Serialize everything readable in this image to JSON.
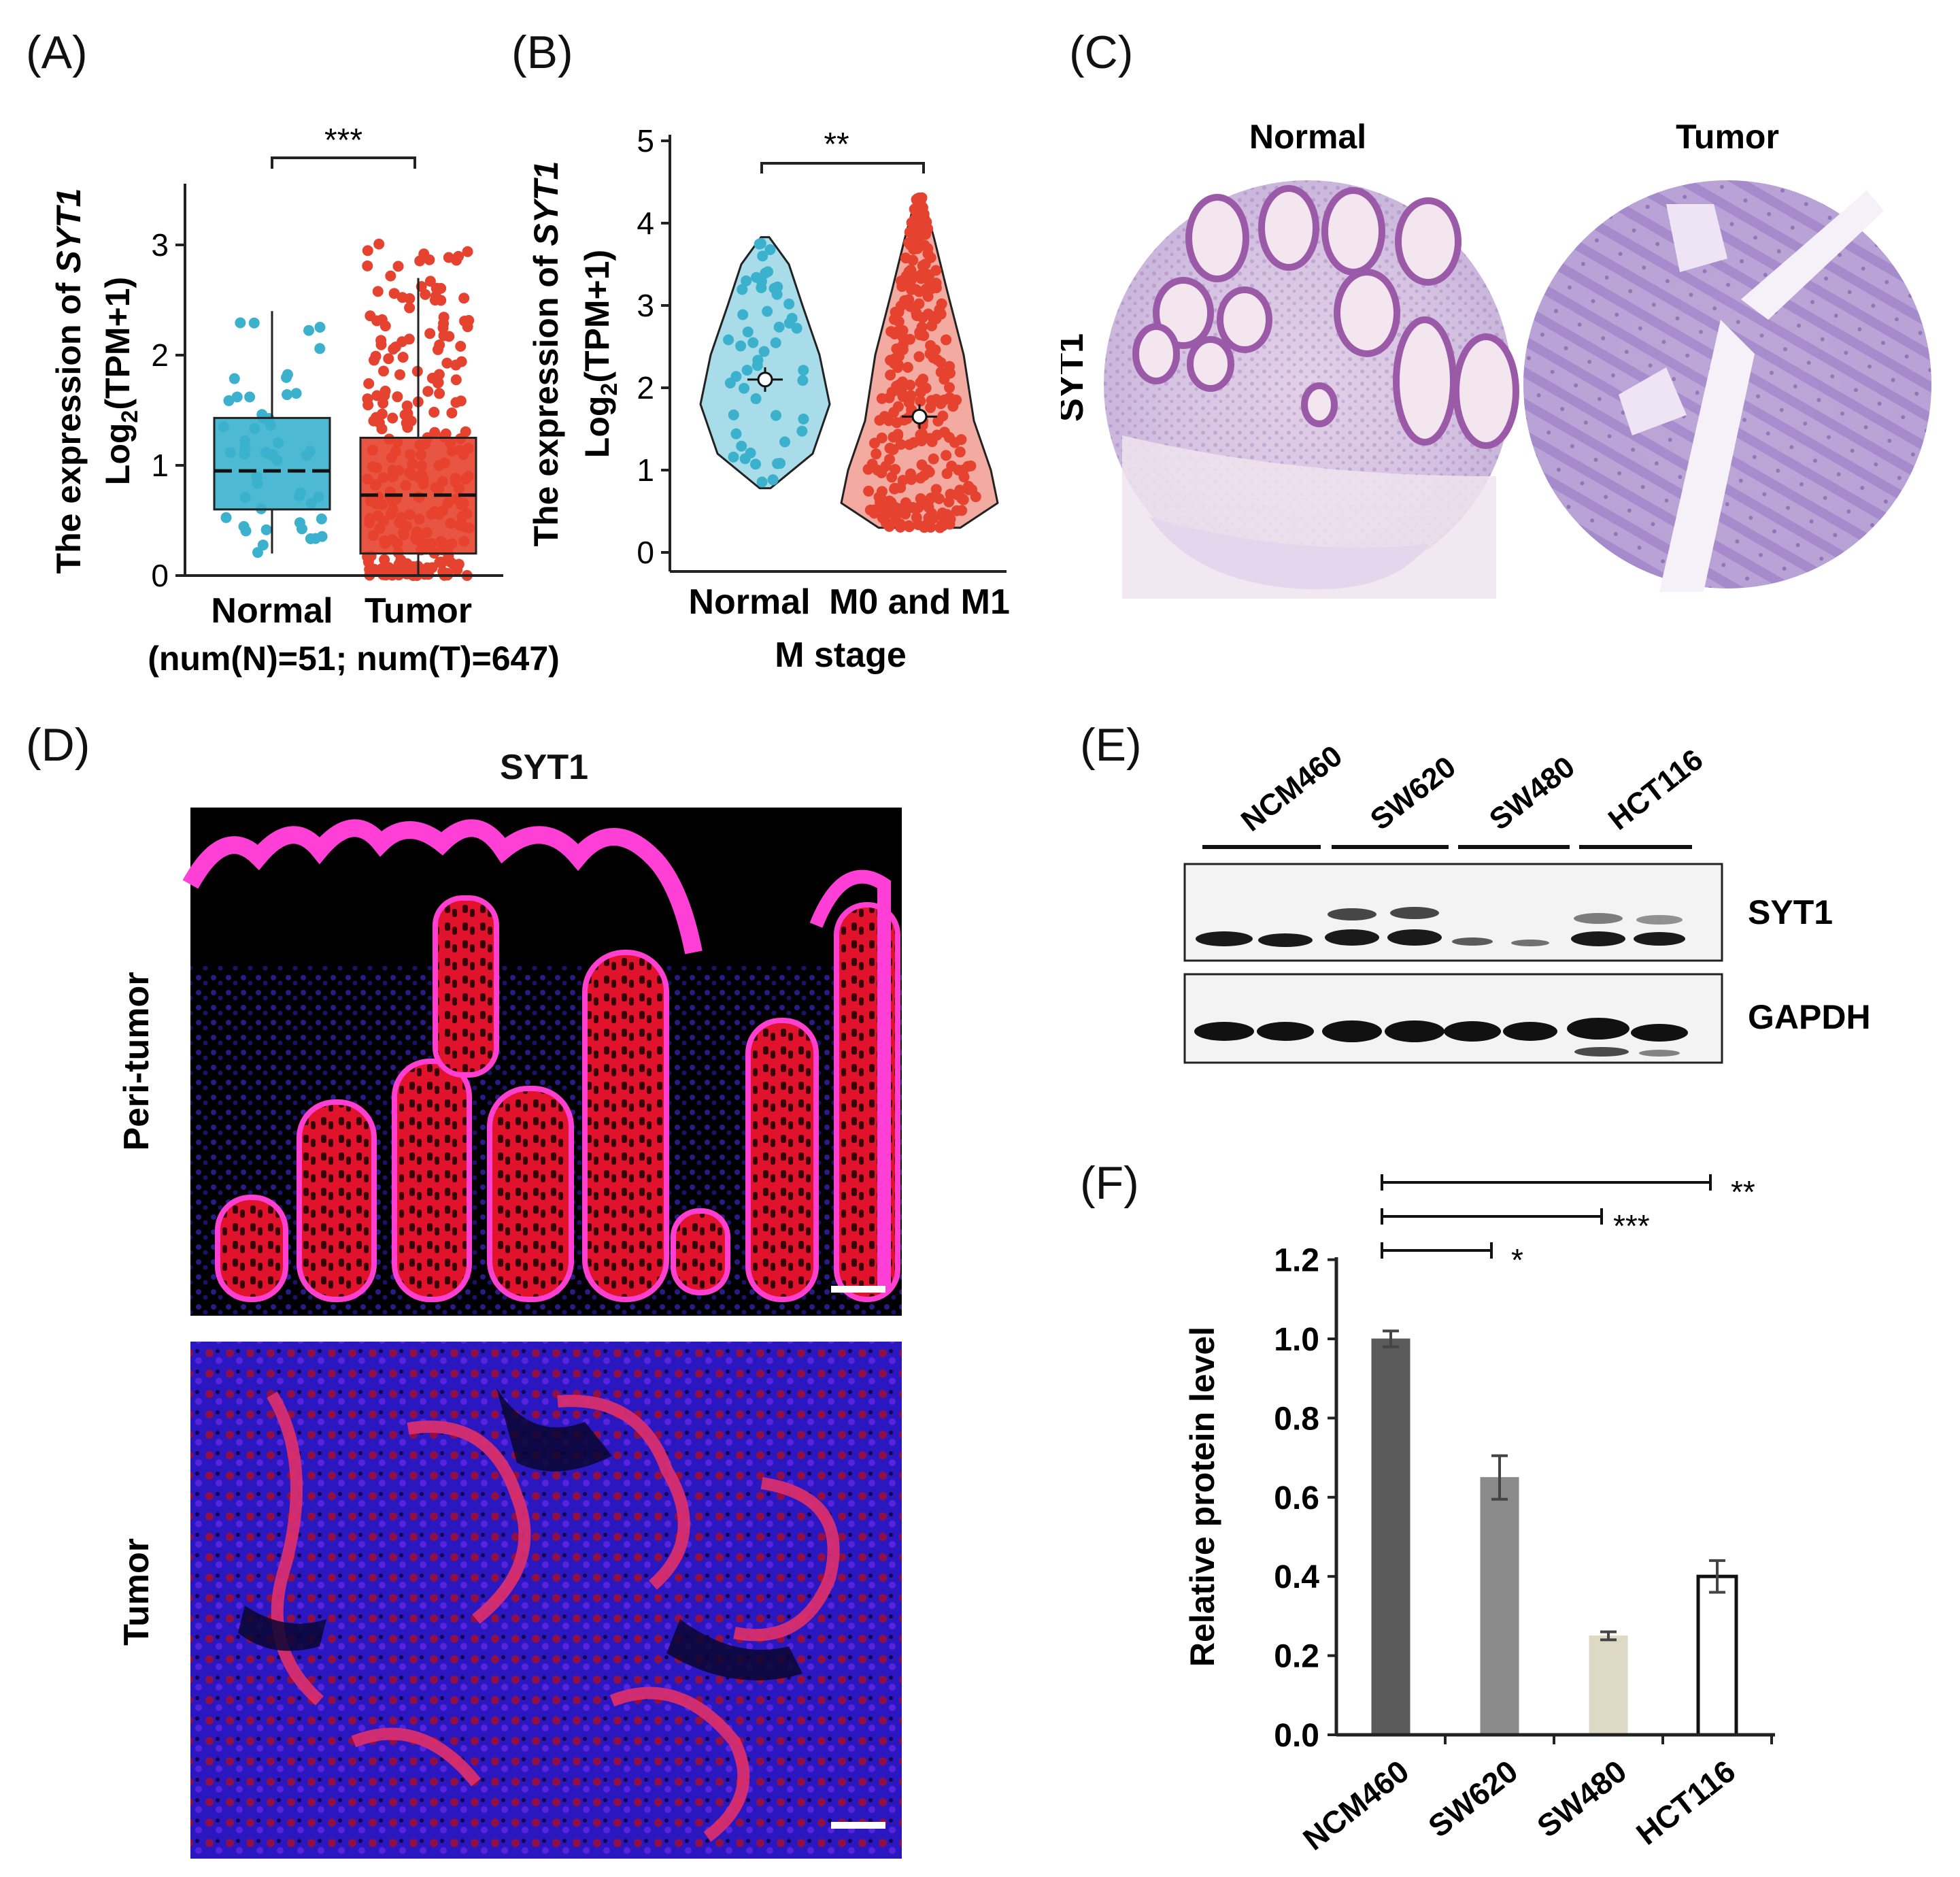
{
  "panels": {
    "A": {
      "label": "(A)",
      "significance": "***",
      "ylabel_line1": "The expression of ",
      "ylabel_gene": "SYT1",
      "ylabel_line2_pre": "Log",
      "ylabel_line2_sub": "2",
      "ylabel_line2_post": "(TPM+1)",
      "yticks": [
        "0",
        "1",
        "2",
        "3"
      ],
      "categories": [
        "Normal",
        "Tumor"
      ],
      "footnote": "(num(N)=51; num(T)=647)"
    },
    "B": {
      "label": "(B)",
      "significance": "**",
      "ylabel_line1": "The expression of ",
      "ylabel_gene": "SYT1",
      "ylabel_line2_pre": "Log",
      "ylabel_line2_sub": "2",
      "ylabel_line2_post": "(TPM+1)",
      "yticks": [
        "0",
        "1",
        "2",
        "3",
        "4",
        "5"
      ],
      "categories": [
        "Normal",
        "M0 and M1"
      ],
      "xlabel": "M stage"
    },
    "C": {
      "label": "(C)",
      "col_normal": "Normal",
      "col_tumor": "Tumor",
      "row_label": "SYT1"
    },
    "D": {
      "label": "(D)",
      "title": "SYT1",
      "row_top": "Peri-tumor",
      "row_bottom": "Tumor"
    },
    "E": {
      "label": "(E)",
      "lanes": [
        "NCM460",
        "SW620",
        "SW480",
        "HCT116"
      ],
      "band_top": "SYT1",
      "band_bottom": "GAPDH"
    },
    "F": {
      "label": "(F)",
      "ylabel": "Relative protein level",
      "yticks": [
        "0.0",
        "0.2",
        "0.4",
        "0.6",
        "0.8",
        "1.0",
        "1.2"
      ],
      "categories": [
        "NCM460",
        "SW620",
        "SW480",
        "HCT116"
      ],
      "sig": [
        "*",
        "***",
        "**"
      ]
    }
  },
  "chart_data": [
    {
      "panel": "A",
      "type": "box",
      "categories": [
        "Normal",
        "Tumor"
      ],
      "ylim": [
        0,
        3.2
      ],
      "series": [
        {
          "name": "Normal",
          "color": "#3bb1cd",
          "q1": 0.6,
          "median": 0.95,
          "q3": 1.43,
          "whisker_low": 0.2,
          "whisker_high": 2.4
        },
        {
          "name": "Tumor",
          "color": "#e5422f",
          "q1": 0.2,
          "median": 0.73,
          "q3": 1.25,
          "whisker_low": 0.0,
          "whisker_high": 2.7
        }
      ]
    },
    {
      "panel": "B",
      "type": "violin",
      "categories": [
        "Normal",
        "M0 and M1"
      ],
      "ylim": [
        0,
        5
      ],
      "series": [
        {
          "name": "Normal",
          "color": "#3bb1cd",
          "min": 0.78,
          "max": 3.83,
          "mean": 2.1
        },
        {
          "name": "M0 and M1",
          "color": "#e5422f",
          "min": 0.3,
          "max": 4.35,
          "mean": 1.65
        }
      ]
    },
    {
      "panel": "F",
      "type": "bar",
      "categories": [
        "NCM460",
        "SW620",
        "SW480",
        "HCT116"
      ],
      "values": [
        1.0,
        0.65,
        0.25,
        0.4
      ],
      "errors": [
        0.02,
        0.055,
        0.01,
        0.04
      ],
      "colors": [
        "#5a5a5a",
        "#8a8a8a",
        "#ddd9c4",
        "#ffffff"
      ],
      "ylim": [
        0,
        1.2
      ]
    }
  ]
}
